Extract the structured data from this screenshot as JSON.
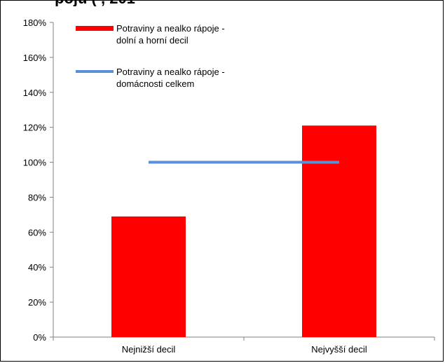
{
  "title_fragment": "pojů (                                                          , 201",
  "chart_data": {
    "type": "bar",
    "categories": [
      "Nejnižší decil",
      "Nejvyšší decil"
    ],
    "series": [
      {
        "name": "Potraviny a nealko rápoje -\ndolní a horní decil",
        "type": "bar",
        "values": [
          0.69,
          1.21
        ],
        "color": "#ff0000"
      },
      {
        "name": "Potraviny a nealko rápoje -\ndomácnosti celkem",
        "type": "line",
        "values": [
          1.0,
          1.0
        ],
        "color": "#5b8fd6"
      }
    ],
    "ylim": [
      0,
      1.8
    ],
    "yticks": [
      0,
      0.2,
      0.4,
      0.6,
      0.8,
      1.0,
      1.2,
      1.4,
      1.6,
      1.8
    ],
    "ytick_labels": [
      "0%",
      "20%",
      "40%",
      "60%",
      "80%",
      "100%",
      "120%",
      "140%",
      "160%",
      "180%"
    ],
    "grid": false,
    "legend": "top-left"
  }
}
